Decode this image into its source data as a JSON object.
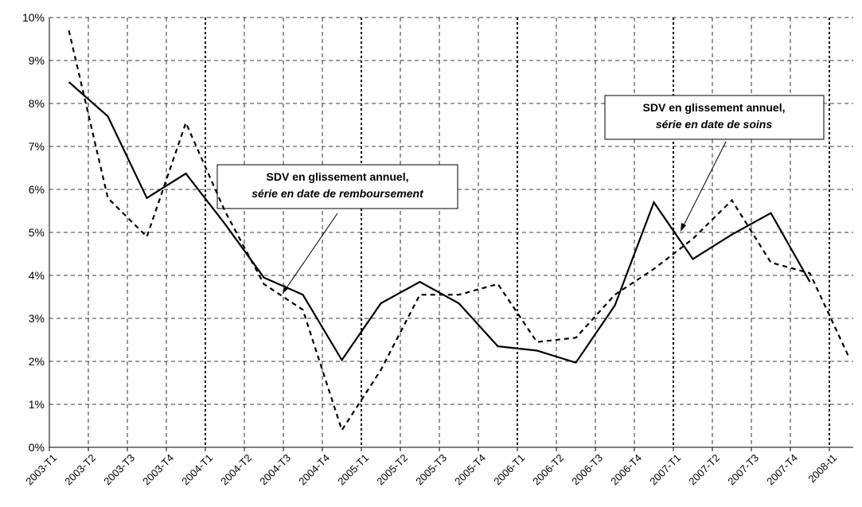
{
  "chart_data": {
    "type": "line",
    "categories": [
      "2003-T1",
      "2003-T2",
      "2003-T3",
      "2003-T4",
      "2004-T1",
      "2004-T2",
      "2004-T3",
      "2004-T4",
      "2005-T1",
      "2005-T2",
      "2005-T3",
      "2005-T4",
      "2006-T1",
      "2006-T2",
      "2006-T3",
      "2006-T4",
      "2007-T1",
      "2007-T2",
      "2007-T3",
      "2007-T4",
      "2008-t1"
    ],
    "series": [
      {
        "color": "#000000",
        "line_style": "solid",
        "values": [
          8.5,
          7.7,
          5.8,
          6.37,
          5.2,
          3.95,
          3.55,
          2.03,
          3.35,
          3.85,
          3.35,
          2.35,
          2.25,
          1.97,
          3.3,
          5.7,
          4.38,
          4.95,
          5.45,
          3.85,
          null
        ]
      },
      {
        "color": "#000000",
        "line_style": "dashed",
        "values": [
          9.7,
          5.8,
          4.9,
          7.55,
          5.5,
          3.8,
          3.2,
          0.4,
          1.8,
          3.55,
          3.55,
          3.8,
          2.45,
          2.55,
          3.55,
          4.15,
          4.85,
          5.75,
          4.3,
          4.05,
          2.1
        ]
      }
    ],
    "ylim": [
      0,
      10
    ],
    "yticks": [
      {
        "value": 0,
        "label": "0%"
      },
      {
        "value": 1,
        "label": "1%"
      },
      {
        "value": 2,
        "label": "2%"
      },
      {
        "value": 3,
        "label": "3%"
      },
      {
        "value": 4,
        "label": "4%"
      },
      {
        "value": 5,
        "label": "5%"
      },
      {
        "value": 6,
        "label": "6%"
      },
      {
        "value": 7,
        "label": "7%"
      },
      {
        "value": 8,
        "label": "8%"
      },
      {
        "value": 9,
        "label": "9%"
      },
      {
        "value": 10,
        "label": "10%"
      }
    ],
    "grid": true,
    "annotations": [
      {
        "text": "SDV en glissement annuel,",
        "subtext": "série en date de remboursement"
      },
      {
        "text": "SDV en glissement annuel,",
        "subtext": "série en date de soins"
      }
    ]
  }
}
